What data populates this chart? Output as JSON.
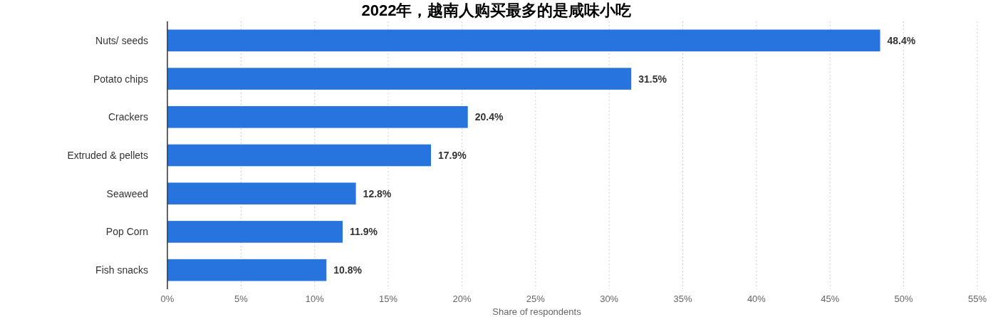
{
  "chart_data": {
    "type": "bar",
    "orientation": "horizontal",
    "title": "2022年，越南人购买最多的是咸味小吃",
    "xlabel": "Share of respondents",
    "categories": [
      "Nuts/ seeds",
      "Potato chips",
      "Crackers",
      "Extruded & pellets",
      "Seaweed",
      "Pop Corn",
      "Fish snacks"
    ],
    "values": [
      48.4,
      31.5,
      20.4,
      17.9,
      12.8,
      11.9,
      10.8
    ],
    "value_labels": [
      "48.4%",
      "31.5%",
      "20.4%",
      "17.9%",
      "12.8%",
      "11.9%",
      "10.8%"
    ],
    "color": "#2874de",
    "xlim": [
      0,
      55
    ],
    "xticks": [
      {
        "value": 0,
        "label": "0%"
      },
      {
        "value": 5,
        "label": "5%"
      },
      {
        "value": 10,
        "label": "10%"
      },
      {
        "value": 15,
        "label": "15%"
      },
      {
        "value": 20,
        "label": "20%"
      },
      {
        "value": 25,
        "label": "25%"
      },
      {
        "value": 30,
        "label": "30%"
      },
      {
        "value": 35,
        "label": "35%"
      },
      {
        "value": 40,
        "label": "40%"
      },
      {
        "value": 45,
        "label": "45%"
      },
      {
        "value": 50,
        "label": "50%"
      },
      {
        "value": 55,
        "label": "55%"
      }
    ],
    "grid": "x"
  }
}
